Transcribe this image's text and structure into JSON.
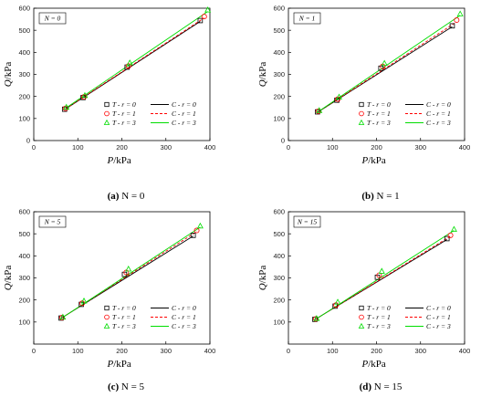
{
  "chart_data": [
    {
      "type": "scatter",
      "panel_tag": "(a)",
      "caption": "N = 0",
      "annotation": "N = 0",
      "xlabel_var": "P",
      "xlabel_unit": "/kPa",
      "ylabel_var": "Q",
      "ylabel_unit": "/kPa",
      "xlim": [
        0,
        400
      ],
      "ylim": [
        0,
        600
      ],
      "xticks": [
        0,
        100,
        200,
        300,
        400
      ],
      "yticks": [
        0,
        100,
        200,
        300,
        400,
        500,
        600
      ],
      "legend": [
        {
          "test": "T - r = 0",
          "calc": "C - r = 0"
        },
        {
          "test": "T - r = 1",
          "calc": "C - r = 1"
        },
        {
          "test": "T - r = 3",
          "calc": "C - r = 3"
        }
      ],
      "series": [
        {
          "r": 0,
          "color": "#000000",
          "marker": "square",
          "line": "solid",
          "points": [
            [
              70,
              142
            ],
            [
              112,
              195
            ],
            [
              212,
              333
            ],
            [
              378,
              544
            ]
          ],
          "line_pts": [
            [
              70,
              140
            ],
            [
              378,
              540
            ]
          ]
        },
        {
          "r": 1,
          "color": "#ff0000",
          "marker": "circle",
          "line": "dashed",
          "points": [
            [
              72,
              146
            ],
            [
              114,
              198
            ],
            [
              215,
              338
            ],
            [
              387,
              562
            ]
          ],
          "line_pts": [
            [
              72,
              144
            ],
            [
              387,
              556
            ]
          ]
        },
        {
          "r": 3,
          "color": "#00dd00",
          "marker": "triangle",
          "line": "solid",
          "points": [
            [
              74,
              151
            ],
            [
              116,
              204
            ],
            [
              218,
              352
            ],
            [
              395,
              592
            ]
          ],
          "line_pts": [
            [
              74,
              149
            ],
            [
              395,
              585
            ]
          ]
        }
      ]
    },
    {
      "type": "scatter",
      "panel_tag": "(b)",
      "caption": "N = 1",
      "annotation": "N = 1",
      "xlabel_var": "P",
      "xlabel_unit": "/kPa",
      "ylabel_var": "Q",
      "ylabel_unit": "/kPa",
      "xlim": [
        0,
        400
      ],
      "ylim": [
        0,
        600
      ],
      "xticks": [
        0,
        100,
        200,
        300,
        400
      ],
      "yticks": [
        0,
        100,
        200,
        300,
        400,
        500,
        600
      ],
      "legend": [
        {
          "test": "T - r = 0",
          "calc": "C - r = 0"
        },
        {
          "test": "T - r = 1",
          "calc": "C - r = 1"
        },
        {
          "test": "T - r = 3",
          "calc": "C - r = 3"
        }
      ],
      "series": [
        {
          "r": 0,
          "color": "#000000",
          "marker": "square",
          "line": "solid",
          "points": [
            [
              66,
              130
            ],
            [
              110,
              183
            ],
            [
              210,
              328
            ],
            [
              372,
              520
            ]
          ],
          "line_pts": [
            [
              66,
              128
            ],
            [
              372,
              516
            ]
          ]
        },
        {
          "r": 1,
          "color": "#ff0000",
          "marker": "circle",
          "line": "dashed",
          "points": [
            [
              68,
              133
            ],
            [
              112,
              188
            ],
            [
              214,
              336
            ],
            [
              382,
              546
            ]
          ],
          "line_pts": [
            [
              68,
              131
            ],
            [
              382,
              538
            ]
          ]
        },
        {
          "r": 3,
          "color": "#00dd00",
          "marker": "triangle",
          "line": "solid",
          "points": [
            [
              70,
              136
            ],
            [
              115,
              197
            ],
            [
              218,
              350
            ],
            [
              390,
              574
            ]
          ],
          "line_pts": [
            [
              70,
              134
            ],
            [
              390,
              568
            ]
          ]
        }
      ]
    },
    {
      "type": "scatter",
      "panel_tag": "(c)",
      "caption": "N = 5",
      "annotation": "N = 5",
      "xlabel_var": "P",
      "xlabel_unit": "/kPa",
      "ylabel_var": "Q",
      "ylabel_unit": "/kPa",
      "xlim": [
        0,
        400
      ],
      "ylim": [
        0,
        600
      ],
      "xticks": [
        0,
        100,
        200,
        300,
        400
      ],
      "yticks": [
        100,
        200,
        300,
        400,
        500,
        600
      ],
      "legend": [
        {
          "test": "T - r = 0",
          "calc": "C - r = 0"
        },
        {
          "test": "T - r = 1",
          "calc": "C - r = 1"
        },
        {
          "test": "T - r = 3",
          "calc": "C - r = 3"
        }
      ],
      "series": [
        {
          "r": 0,
          "color": "#000000",
          "marker": "square",
          "line": "solid",
          "points": [
            [
              62,
              118
            ],
            [
              108,
              180
            ],
            [
              206,
              316
            ],
            [
              362,
              493
            ]
          ],
          "line_pts": [
            [
              62,
              117
            ],
            [
              362,
              490
            ]
          ]
        },
        {
          "r": 1,
          "color": "#ff0000",
          "marker": "circle",
          "line": "dashed",
          "points": [
            [
              64,
              120
            ],
            [
              110,
              185
            ],
            [
              210,
              325
            ],
            [
              370,
              515
            ]
          ],
          "line_pts": [
            [
              64,
              119
            ],
            [
              370,
              510
            ]
          ]
        },
        {
          "r": 3,
          "color": "#00dd00",
          "marker": "triangle",
          "line": "solid",
          "points": [
            [
              66,
              122
            ],
            [
              114,
              195
            ],
            [
              215,
              340
            ],
            [
              378,
              535
            ]
          ],
          "line_pts": [
            [
              66,
              121
            ],
            [
              378,
              530
            ]
          ]
        }
      ]
    },
    {
      "type": "scatter",
      "panel_tag": "(d)",
      "caption": "N = 15",
      "annotation": "N = 15",
      "xlabel_var": "P",
      "xlabel_unit": "/kPa",
      "ylabel_var": "Q",
      "ylabel_unit": "/kPa",
      "xlim": [
        0,
        400
      ],
      "ylim": [
        0,
        600
      ],
      "xticks": [
        0,
        100,
        200,
        300,
        400
      ],
      "yticks": [
        100,
        200,
        300,
        400,
        500,
        600
      ],
      "legend": [
        {
          "test": "T - r = 0",
          "calc": "C - r = 0"
        },
        {
          "test": "T - r = 1",
          "calc": "C - r = 1"
        },
        {
          "test": "T - r = 3",
          "calc": "C - r = 3"
        }
      ],
      "series": [
        {
          "r": 0,
          "color": "#000000",
          "marker": "square",
          "line": "solid",
          "points": [
            [
              60,
              112
            ],
            [
              106,
              172
            ],
            [
              202,
              303
            ],
            [
              360,
              478
            ]
          ],
          "line_pts": [
            [
              60,
              111
            ],
            [
              360,
              474
            ]
          ]
        },
        {
          "r": 1,
          "color": "#ff0000",
          "marker": "circle",
          "line": "dashed",
          "points": [
            [
              62,
              114
            ],
            [
              108,
              177
            ],
            [
              206,
              312
            ],
            [
              368,
              493
            ]
          ],
          "line_pts": [
            [
              62,
              113
            ],
            [
              368,
              489
            ]
          ]
        },
        {
          "r": 3,
          "color": "#00dd00",
          "marker": "triangle",
          "line": "solid",
          "points": [
            [
              64,
              116
            ],
            [
              112,
              190
            ],
            [
              212,
              330
            ],
            [
              376,
              520
            ]
          ],
          "line_pts": [
            [
              64,
              115
            ],
            [
              376,
              515
            ]
          ]
        }
      ]
    }
  ]
}
